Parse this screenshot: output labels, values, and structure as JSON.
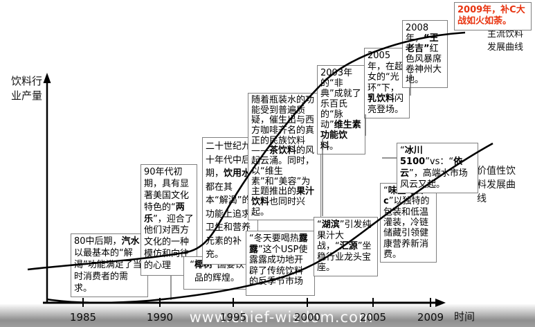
{
  "watermark": "www.chief-wisdom.com",
  "colors": {
    "highlight_red": "#e8330f",
    "box_border": "#7f7f7f",
    "curve_black": "#000000",
    "band_gray": "#8f8f8f"
  },
  "labels": {
    "y_axis": "饮料行\n业产量",
    "x_axis": "时间",
    "mainstream_curve": "主流饮料\n发展曲线",
    "value_curve": "价值性饮\n料发展曲\n线"
  },
  "chart_data": {
    "type": "line",
    "title": "",
    "xlabel": "时间",
    "ylabel": "饮料行业产量",
    "x_ticks": [
      "1985",
      "1990",
      "1995",
      "2000",
      "2005",
      "2009"
    ],
    "grid": false,
    "legend_position": "inline-right",
    "series": [
      {
        "name": "主流饮料发展曲线",
        "description": "S形曲线：1985-1992年低位缓慢爬升，1993-2005年陡峭上升，2008-2009年在高位趋缓",
        "x_years": [
          1985,
          1990,
          1993,
          1997,
          2001,
          2005,
          2009
        ],
        "y_relative": [
          0.13,
          0.17,
          0.3,
          0.6,
          0.82,
          0.95,
          1.0
        ]
      },
      {
        "name": "价值性饮料发展曲线",
        "description": "1985-1997年贴近横轴几乎水平，2000年后持续加速上升，2009年仍在上行",
        "x_years": [
          1985,
          1990,
          1995,
          1998,
          2002,
          2006,
          2009
        ],
        "y_relative": [
          0.01,
          0.0,
          0.04,
          0.1,
          0.28,
          0.47,
          0.62
        ]
      }
    ],
    "annotations": [
      {
        "name": "1980s-soda",
        "segments": [
          {
            "t": "80中后期，"
          },
          {
            "t": "汽水",
            "b": true
          },
          {
            "t": "以最基本的“解渴”功能满足了当时消费者的需求。"
          }
        ]
      },
      {
        "name": "early-1990s-two-colas",
        "segments": [
          {
            "t": "90年代初期，具有显著美国文化特色的“"
          },
          {
            "t": "两乐",
            "b": true
          },
          {
            "t": "”，迎合了他们对西方文化的一种模仿和向往的心理"
          }
        ]
      },
      {
        "name": "yeshu-state-banquet",
        "segments": [
          {
            "t": "“"
          },
          {
            "t": "椰树",
            "b": true
          },
          {
            "t": "”国宴饮品的辉煌。"
          }
        ]
      },
      {
        "name": "mid-late-1990s-drinking-water",
        "segments": [
          {
            "t": "二十世纪九十年代中后期，"
          },
          {
            "t": "饮用水",
            "b": true
          },
          {
            "t": "都在其本“解渴”的功能上追求卫生和营养元素的补充。"
          }
        ]
      },
      {
        "name": "tea-and-juice-rise",
        "segments": [
          {
            "t": "随着瓶装水的功能受到普遍质疑，催生出与西方咖啡齐名的真正的民族饮料——"
          },
          {
            "t": "茶饮料",
            "b": true
          },
          {
            "t": "的风起云涌。同时，以“维生素”和“美容”为主题推出的"
          },
          {
            "t": "果汁饮料",
            "b": true
          },
          {
            "t": "也同时兴起。"
          }
        ]
      },
      {
        "name": "lulu-winter-usp",
        "segments": [
          {
            "t": "“冬天要喝热"
          },
          {
            "t": "露露",
            "b": true
          },
          {
            "t": "”这个USP使露露成功地开辟了传统饮料的反季节市场"
          }
        ]
      },
      {
        "name": "hubin-huiyuan-juice-war",
        "segments": [
          {
            "t": "“"
          },
          {
            "t": "湖滨",
            "b": true
          },
          {
            "t": "”引发纯果汁大战，“"
          },
          {
            "t": "汇源",
            "b": true
          },
          {
            "t": "”坐稳行业龙头宝座。"
          }
        ]
      },
      {
        "name": "2003-sars-maidong",
        "segments": [
          {
            "t": "2003年的“非典”成就了乐百氏的“脉动”"
          },
          {
            "t": "维生素功能饮料",
            "b": true
          },
          {
            "t": "。"
          }
        ]
      },
      {
        "name": "2005-supergirl-milk-drink",
        "segments": [
          {
            "t": "2005年，在超女的“光环”下，"
          },
          {
            "t": "乳饮料",
            "b": true
          },
          {
            "t": "闪亮登场。"
          }
        ]
      },
      {
        "name": "2008-wanglaoji",
        "segments": [
          {
            "t": "2008年，"
          },
          {
            "t": "“王老吉”",
            "b": true
          },
          {
            "t": "红色风暴席卷神州大地。"
          }
        ]
      },
      {
        "name": "weiquan-daily-c",
        "segments": [
          {
            "t": "“"
          },
          {
            "t": "味全每日c",
            "b": true
          },
          {
            "t": "”以独特的包装和低温灌装，冷链储藏引领健康营养新消费。"
          }
        ]
      },
      {
        "name": "glacier5100-vs-evian",
        "segments": [
          {
            "t": "“"
          },
          {
            "t": "冰川5100",
            "b": true
          },
          {
            "t": "”vs：“"
          },
          {
            "t": "依云",
            "b": true
          },
          {
            "t": "”，高端水市场风云又起。"
          }
        ]
      },
      {
        "name": "2009-vitamin-c-war",
        "segments": [
          {
            "t": "2009年，补C大战如火如荼。",
            "b": true
          }
        ]
      }
    ]
  }
}
